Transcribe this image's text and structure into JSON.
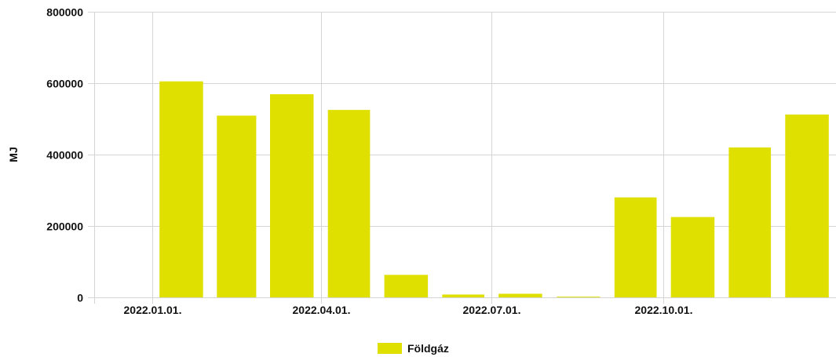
{
  "chart_data": {
    "type": "bar",
    "ylabel": "MJ",
    "ylim": [
      0,
      800000
    ],
    "yticks": [
      0,
      200000,
      400000,
      600000,
      800000
    ],
    "xtick_labels": [
      "2022.01.01.",
      "2022.04.01.",
      "2022.07.01.",
      "2022.10.01."
    ],
    "grid": true,
    "legend_position": "bottom-center",
    "series": [
      {
        "name": "Földgáz",
        "color": "#e0e000",
        "x": [
          "2022-01-01",
          "2022-02-01",
          "2022-03-01",
          "2022-04-01",
          "2022-05-01",
          "2022-06-01",
          "2022-07-01",
          "2022-08-01",
          "2022-09-01",
          "2022-10-01",
          "2022-11-01",
          "2022-12-01"
        ],
        "values": [
          605000,
          509000,
          569000,
          525000,
          63000,
          8000,
          10000,
          2000,
          280000,
          225000,
          420000,
          512000
        ]
      }
    ]
  }
}
